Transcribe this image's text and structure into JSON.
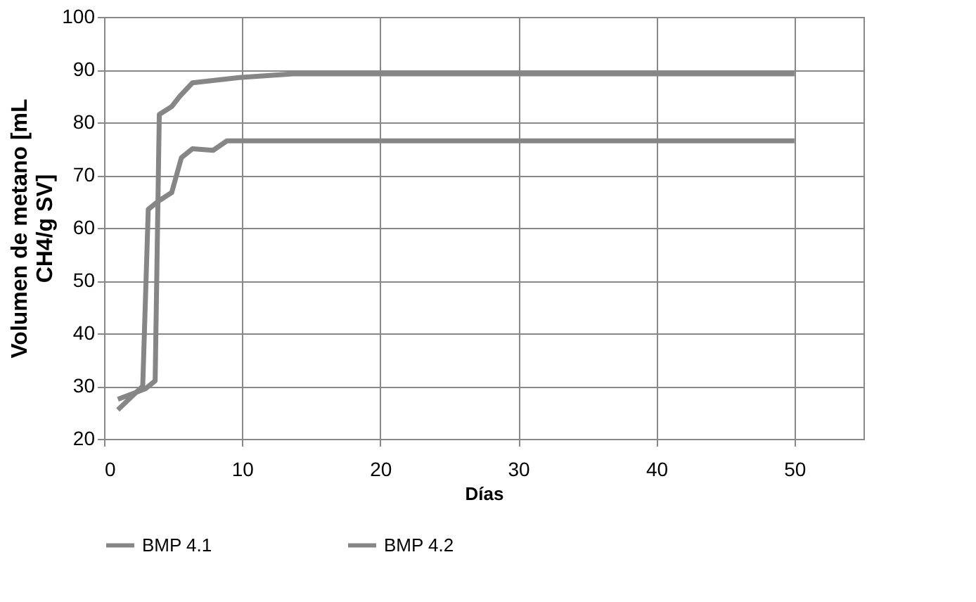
{
  "chart_data": {
    "type": "line",
    "xlabel": "Días",
    "ylabel": "Volumen de metano [mL CH4/g SV]",
    "xlim": [
      0,
      55
    ],
    "xticks": [
      0,
      10,
      20,
      30,
      40,
      50
    ],
    "ylim": [
      20,
      100
    ],
    "yticks": [
      20,
      30,
      40,
      50,
      60,
      70,
      80,
      90,
      100
    ],
    "grid": true,
    "legend": "bottom",
    "marker": "none",
    "line_style": "solid",
    "series": [
      {
        "name": "BMP 4.1",
        "color": "#868686",
        "x": [
          1,
          2,
          3,
          3.7,
          4,
          4.9,
          5.5,
          6.4,
          9.8,
          13.7,
          20,
          30,
          40,
          50
        ],
        "values": [
          27.5,
          28.5,
          29.5,
          31,
          81.5,
          83,
          85,
          87.5,
          88.5,
          89.2,
          89.2,
          89.2,
          89.2,
          89.2
        ]
      },
      {
        "name": "BMP 4.2",
        "color": "#868686",
        "x": [
          1,
          2,
          2.8,
          3.2,
          3.9,
          4.9,
          5.6,
          6.4,
          7.9,
          8.9,
          20,
          30,
          40,
          50
        ],
        "values": [
          25.5,
          28,
          30,
          63.5,
          65,
          66.7,
          73.3,
          75,
          74.7,
          76.5,
          76.5,
          76.5,
          76.5,
          76.5
        ]
      }
    ]
  }
}
